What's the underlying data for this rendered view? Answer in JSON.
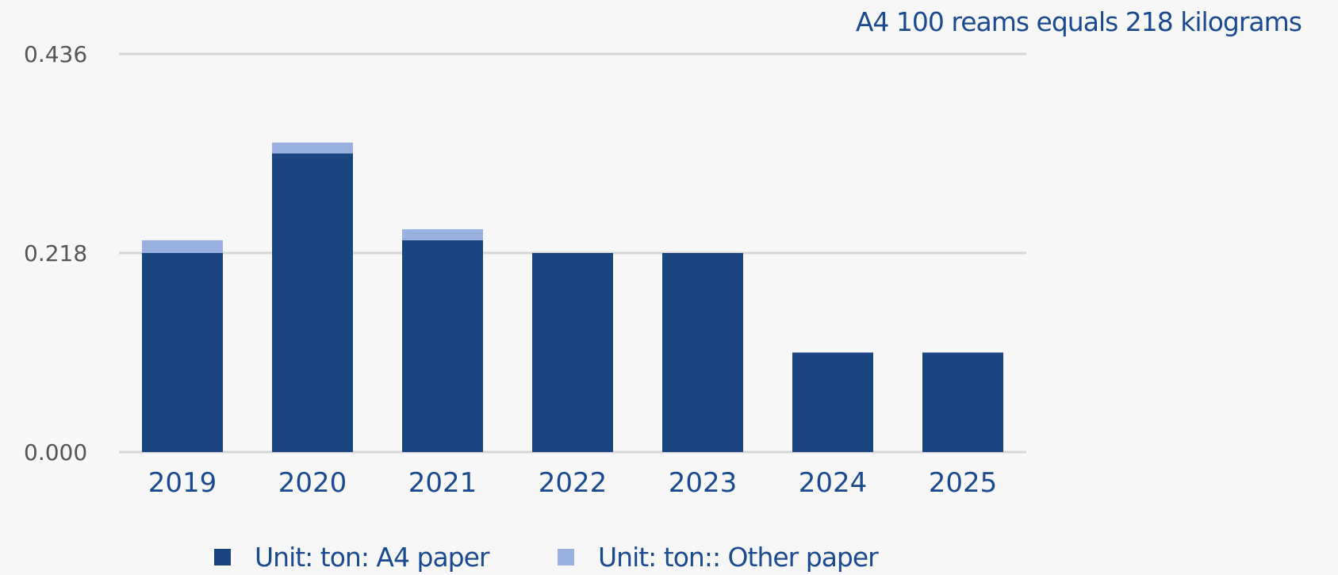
{
  "chart_data": {
    "type": "bar",
    "stacked": true,
    "annotation": "A4 100 reams equals 218 kilograms",
    "categories": [
      "2019",
      "2020",
      "2021",
      "2022",
      "2023",
      "2024",
      "2025"
    ],
    "series": [
      {
        "name": "Unit: ton: A4 paper",
        "color": "#1b4580",
        "values": [
          0.218,
          0.327,
          0.232,
          0.218,
          0.218,
          0.109,
          0.109
        ]
      },
      {
        "name": "Unit: ton:: Other paper",
        "color": "#9ab0e1",
        "values": [
          0.014,
          0.012,
          0.012,
          0,
          0,
          0,
          0
        ]
      }
    ],
    "y_ticks": [
      "0.000",
      "0.218",
      "0.436"
    ],
    "ylim": [
      0,
      0.436
    ],
    "grid": true,
    "legend_position": "bottom",
    "title": "",
    "xlabel": "",
    "ylabel": ""
  }
}
